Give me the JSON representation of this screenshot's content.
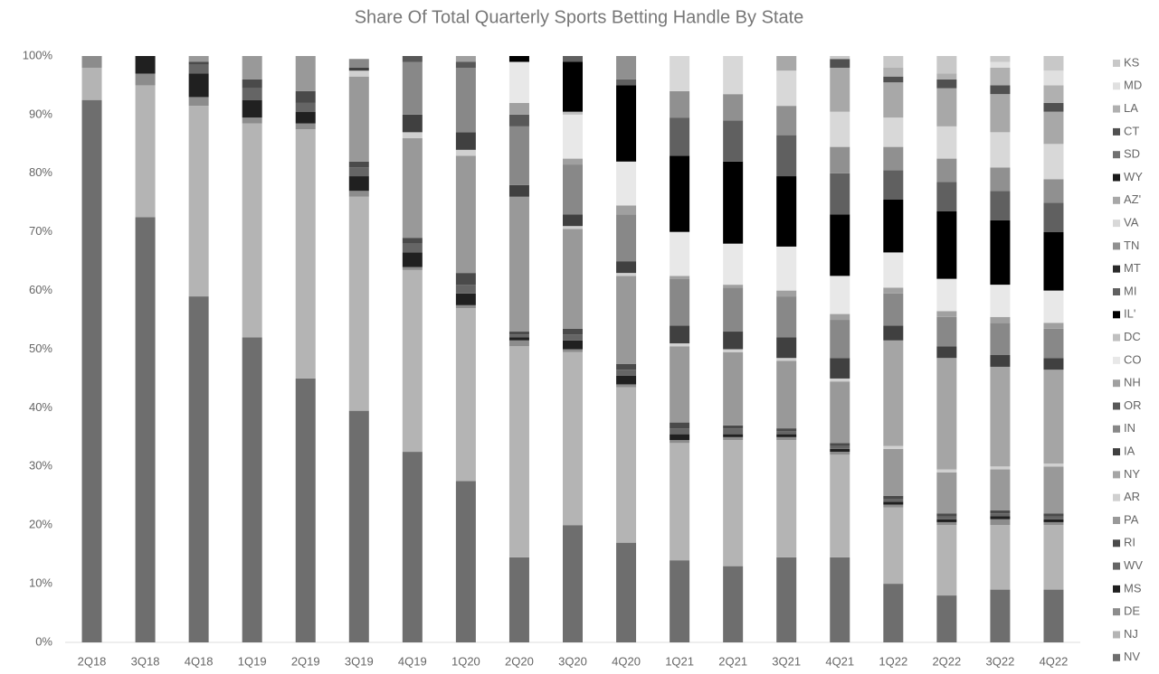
{
  "chart_data": {
    "type": "stacked_bar",
    "title": "Share Of Total Quarterly Sports Betting Handle By State",
    "categories": [
      "2Q18",
      "3Q18",
      "4Q18",
      "1Q19",
      "2Q19",
      "3Q19",
      "4Q19",
      "1Q20",
      "2Q20",
      "3Q20",
      "4Q20",
      "1Q21",
      "2Q21",
      "3Q21",
      "4Q21",
      "1Q22",
      "2Q22",
      "3Q22",
      "4Q22"
    ],
    "ylim": [
      0,
      100
    ],
    "yticks": [
      {
        "value": 0,
        "label": "0%"
      },
      {
        "value": 10,
        "label": "10%"
      },
      {
        "value": 20,
        "label": "20%"
      },
      {
        "value": 30,
        "label": "30%"
      },
      {
        "value": 40,
        "label": "40%"
      },
      {
        "value": 50,
        "label": "50%"
      },
      {
        "value": 60,
        "label": "60%"
      },
      {
        "value": 70,
        "label": "70%"
      },
      {
        "value": 80,
        "label": "80%"
      },
      {
        "value": 90,
        "label": "90%"
      },
      {
        "value": 100,
        "label": "100%"
      }
    ],
    "grid": false,
    "legend": "right",
    "series": [
      {
        "name": "NV",
        "color": "#6e6e6e",
        "values": [
          92.5,
          72.5,
          59,
          52,
          45,
          39.5,
          32.5,
          27.5,
          14.5,
          20,
          17,
          14,
          13,
          14.5,
          14.5,
          10,
          8,
          9,
          9
        ]
      },
      {
        "name": "NJ",
        "color": "#b4b4b4",
        "values": [
          5.5,
          22.5,
          32.5,
          36.5,
          42.5,
          36.5,
          31,
          29.5,
          36,
          29.5,
          26.5,
          20,
          21.5,
          20,
          17.5,
          13,
          12,
          11,
          11
        ]
      },
      {
        "name": "DE",
        "color": "#8c8c8c",
        "values": [
          2,
          2,
          1.5,
          1,
          1,
          1,
          0.5,
          0.5,
          1,
          0.5,
          0.5,
          0.5,
          0.5,
          0.5,
          0.5,
          0.5,
          0.5,
          1,
          0.5
        ]
      },
      {
        "name": "MS",
        "color": "#202020",
        "values": [
          0,
          3,
          4,
          3,
          2,
          2.5,
          2.5,
          2,
          0.5,
          1.5,
          1.5,
          1,
          0.5,
          0.5,
          0.5,
          0.5,
          0.5,
          0.5,
          0.5
        ]
      },
      {
        "name": "WV",
        "color": "#656565",
        "values": [
          0,
          0,
          1.5,
          2,
          1.5,
          1.5,
          1.5,
          1.5,
          0.5,
          1,
          1,
          1,
          1,
          0.5,
          0.5,
          0.5,
          0.5,
          0.5,
          0.5
        ]
      },
      {
        "name": "RI",
        "color": "#4a4a4a",
        "values": [
          0,
          0,
          0.5,
          1.5,
          2,
          1,
          1,
          2,
          0.5,
          1,
          1,
          1,
          0.5,
          0.5,
          0.5,
          0.5,
          0.5,
          0.5,
          0.5
        ]
      },
      {
        "name": "PA",
        "color": "#999999",
        "values": [
          0,
          0,
          1,
          4,
          6,
          14.5,
          17,
          20,
          23,
          17,
          15,
          13,
          12.5,
          11.5,
          10.5,
          8,
          7,
          7,
          8
        ]
      },
      {
        "name": "AR",
        "color": "#d0d0d0",
        "values": [
          0,
          0,
          0,
          0,
          0,
          1,
          1,
          1,
          0,
          0.5,
          0.5,
          0.5,
          0.5,
          0.5,
          0.5,
          0.5,
          0.5,
          0.5,
          0.5
        ]
      },
      {
        "name": "NY",
        "color": "#a5a5a5",
        "values": [
          0,
          0,
          0,
          0,
          0,
          0,
          0,
          0,
          0,
          0,
          0,
          0,
          0,
          0,
          0,
          18,
          19,
          17,
          16
        ]
      },
      {
        "name": "IA",
        "color": "#404040",
        "values": [
          0,
          0,
          0,
          0,
          0,
          0.5,
          3,
          3,
          2,
          2,
          2,
          3,
          3,
          3.5,
          3.5,
          2.5,
          2,
          2,
          2
        ]
      },
      {
        "name": "IN",
        "color": "#888888",
        "values": [
          0,
          0,
          0,
          0,
          0,
          1.5,
          9,
          11,
          10,
          8.5,
          8,
          8,
          7.5,
          7,
          6.5,
          5.5,
          5,
          5.5,
          5
        ]
      },
      {
        "name": "OR",
        "color": "#585858",
        "values": [
          0,
          0,
          0,
          0,
          0,
          0,
          1,
          1,
          2,
          0,
          0,
          0,
          0,
          0,
          0,
          0,
          0,
          0,
          0
        ]
      },
      {
        "name": "NH",
        "color": "#a0a0a0",
        "values": [
          0,
          0,
          0,
          0,
          0,
          0,
          0,
          1,
          2,
          1,
          1.5,
          0.5,
          0.5,
          1,
          1,
          1,
          1,
          1,
          1
        ]
      },
      {
        "name": "CO",
        "color": "#e8e8e8",
        "values": [
          0,
          0,
          0,
          0,
          0,
          0,
          0,
          0,
          7,
          7.5,
          7.5,
          7.5,
          7,
          7.5,
          6.5,
          6,
          5.5,
          5.5,
          5.5
        ]
      },
      {
        "name": "DC",
        "color": "#c0c0c0",
        "values": [
          0,
          0,
          0,
          0,
          0,
          0,
          0,
          0,
          0,
          0.5,
          0,
          0,
          0,
          0,
          0,
          0,
          0,
          0,
          0
        ]
      },
      {
        "name": "IL'",
        "color": "#000000",
        "values": [
          0,
          0,
          0,
          0,
          0,
          0,
          0,
          0,
          1,
          8.5,
          13,
          13,
          14,
          12,
          10.5,
          9,
          11.5,
          11,
          10
        ]
      },
      {
        "name": "MI",
        "color": "#606060",
        "values": [
          0,
          0,
          0,
          0,
          0,
          0,
          0,
          0,
          0,
          1,
          1,
          6.5,
          7,
          7,
          7,
          5,
          5,
          5,
          5
        ]
      },
      {
        "name": "MT",
        "color": "#2a2a2a",
        "values": [
          0,
          0,
          0,
          0,
          0,
          0,
          0,
          0,
          0,
          0,
          0,
          0,
          0,
          0,
          0,
          0,
          0,
          0,
          0
        ]
      },
      {
        "name": "TN",
        "color": "#909090",
        "values": [
          0,
          0,
          0,
          0,
          0,
          0,
          0,
          0,
          0,
          0,
          4,
          4.5,
          4.5,
          5,
          4.5,
          4,
          4,
          4,
          4
        ]
      },
      {
        "name": "VA",
        "color": "#d8d8d8",
        "values": [
          0,
          0,
          0,
          0,
          0,
          0,
          0,
          0,
          0,
          0,
          0,
          6,
          6.5,
          6,
          6,
          5,
          5.5,
          6,
          6
        ]
      },
      {
        "name": "AZ'",
        "color": "#a8a8a8",
        "values": [
          0,
          0,
          0,
          0,
          0,
          0,
          0,
          0,
          0,
          0,
          0,
          0,
          0,
          2.5,
          7.5,
          6,
          6.5,
          6.5,
          5.5
        ]
      },
      {
        "name": "WY",
        "color": "#1a1a1a",
        "values": [
          0,
          0,
          0,
          0,
          0,
          0,
          0,
          0,
          0,
          0,
          0,
          0,
          0,
          0,
          0,
          0,
          0,
          0,
          0
        ]
      },
      {
        "name": "SD",
        "color": "#707070",
        "values": [
          0,
          0,
          0,
          0,
          0,
          0,
          0,
          0,
          0,
          0,
          0,
          0,
          0,
          0,
          0,
          0,
          0,
          0,
          0
        ]
      },
      {
        "name": "CT",
        "color": "#505050",
        "values": [
          0,
          0,
          0,
          0,
          0,
          0,
          0,
          0,
          0,
          0,
          0,
          0,
          0,
          0,
          1.5,
          1,
          1.5,
          1.5,
          1.5
        ]
      },
      {
        "name": "LA",
        "color": "#b0b0b0",
        "values": [
          0,
          0,
          0,
          0,
          0,
          0,
          0,
          0,
          0,
          0,
          0,
          0,
          0,
          0,
          0,
          1.5,
          1,
          3,
          3
        ]
      },
      {
        "name": "MD",
        "color": "#e0e0e0",
        "values": [
          0,
          0,
          0,
          0,
          0,
          0,
          0,
          0,
          0,
          0,
          0,
          0,
          0,
          0,
          0,
          0,
          0,
          1,
          2.5
        ]
      },
      {
        "name": "KS",
        "color": "#c8c8c8",
        "values": [
          0,
          0,
          0,
          0,
          0,
          0,
          0,
          0,
          0,
          0,
          0,
          0,
          0,
          0,
          0.5,
          2,
          3,
          1,
          2.5
        ]
      }
    ]
  }
}
